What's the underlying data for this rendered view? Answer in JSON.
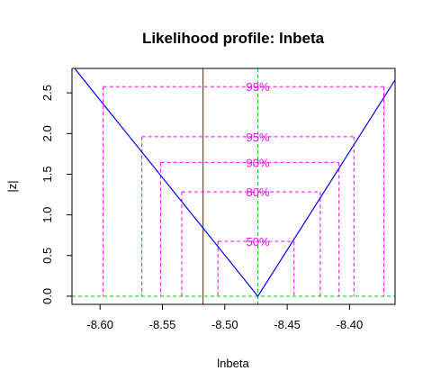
{
  "chart_data": {
    "type": "line",
    "title": "Likelihood profile: lnbeta",
    "xlabel": "lnbeta",
    "ylabel": "|z|",
    "xlim": [
      -8.6225,
      -8.3635
    ],
    "ylim": [
      -0.1,
      2.8
    ],
    "x_ticks": [
      -8.6,
      -8.55,
      -8.5,
      -8.45,
      -8.4
    ],
    "x_tick_labels": [
      "-8.60",
      "-8.55",
      "-8.50",
      "-8.45",
      "-8.40"
    ],
    "y_ticks": [
      0.0,
      0.5,
      1.0,
      1.5,
      2.0,
      2.5
    ],
    "y_tick_labels": [
      "0.0",
      "0.5",
      "1.0",
      "1.5",
      "2.0",
      "2.5"
    ],
    "series": [
      {
        "color": "#0000ff",
        "x": [
          -8.6225,
          -8.4735,
          -8.3635
        ],
        "y": [
          2.84,
          0.0,
          2.66
        ]
      }
    ],
    "mle": -8.4735,
    "start_value": -8.5175,
    "start_line_color": "#ff0000",
    "mle_line_color": "#00cc00",
    "zero_line_color": "#00cc00",
    "confidence_color": "#ff00ff",
    "confidence_levels": [
      {
        "label": "99%",
        "z": 2.576,
        "lower": -8.5975,
        "upper": -8.3725
      },
      {
        "label": "95%",
        "z": 1.96,
        "lower": -8.5665,
        "upper": -8.3965
      },
      {
        "label": "90%",
        "z": 1.645,
        "lower": -8.5515,
        "upper": -8.4085
      },
      {
        "label": "80%",
        "z": 1.282,
        "lower": -8.5345,
        "upper": -8.4235
      },
      {
        "label": "50%",
        "z": 0.674,
        "lower": -8.5055,
        "upper": -8.4445
      }
    ],
    "grid": false,
    "legend": "none"
  }
}
